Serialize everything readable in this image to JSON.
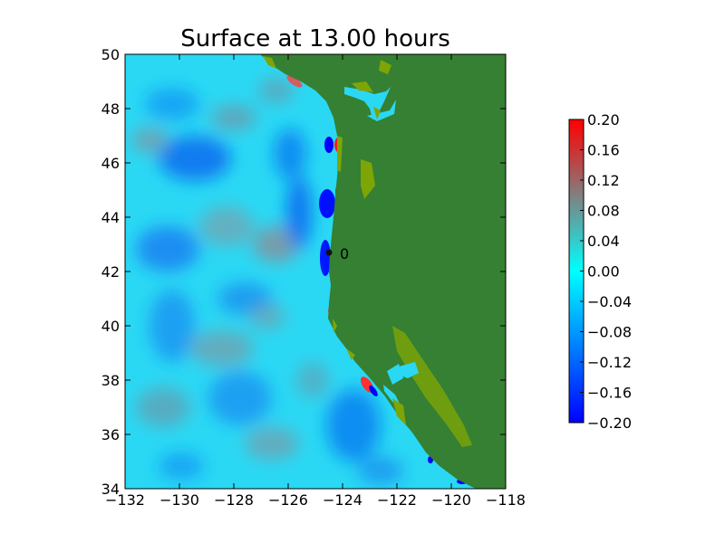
{
  "chart_data": {
    "type": "heatmap",
    "title": "Surface at 13.00 hours",
    "xlabel": "",
    "ylabel": "",
    "xlim": [
      -132,
      -118
    ],
    "ylim": [
      34,
      50
    ],
    "x_ticks": [
      -132,
      -130,
      -128,
      -126,
      -124,
      -122,
      -120,
      -118
    ],
    "x_tick_labels": [
      "−132",
      "−130",
      "−128",
      "−126",
      "−124",
      "−122",
      "−120",
      "−118"
    ],
    "y_ticks": [
      34,
      36,
      38,
      40,
      42,
      44,
      46,
      48,
      50
    ],
    "y_tick_labels": [
      "34",
      "36",
      "38",
      "40",
      "42",
      "44",
      "46",
      "48",
      "50"
    ],
    "colorbar": {
      "range": [
        -0.2,
        0.2
      ],
      "ticks": [
        0.2,
        0.16,
        0.12,
        0.08,
        0.04,
        0.0,
        -0.04,
        -0.08,
        -0.12,
        -0.16,
        -0.2
      ],
      "tick_labels": [
        "0.20",
        "0.16",
        "0.12",
        "0.08",
        "0.04",
        "0.00",
        "−0.04",
        "−0.08",
        "−0.12",
        "−0.16",
        "−0.20"
      ],
      "colors": [
        "#0000ff",
        "#00ffff",
        "#808080",
        "#ff0000"
      ]
    },
    "land_color": "#358032",
    "lowland_color": "#7ea506",
    "gauges": [
      {
        "label": "0",
        "lon": -124.5,
        "lat": 42.7
      }
    ],
    "grid": false
  }
}
